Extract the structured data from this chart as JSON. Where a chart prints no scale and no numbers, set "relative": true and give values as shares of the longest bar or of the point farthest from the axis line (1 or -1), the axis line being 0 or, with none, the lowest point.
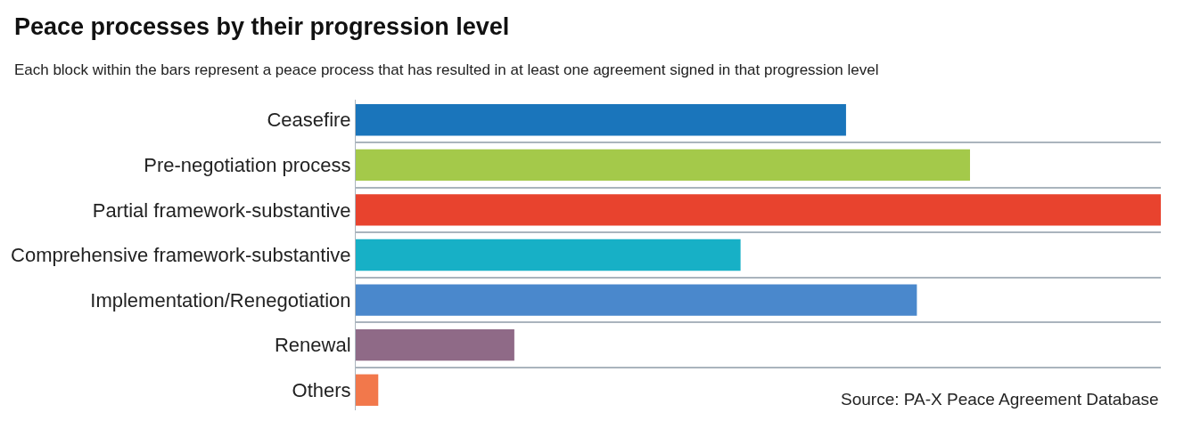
{
  "chart_data": {
    "type": "bar",
    "orientation": "horizontal",
    "relative": true,
    "title": "Peace processes by their progression level",
    "subtitle": "Each block within the bars represent a peace process that has resulted in at least one agreement signed in that progression level",
    "categories": [
      "Ceasefire",
      "Pre-negotiation process",
      "Partial framework-substantive",
      "Comprehensive framework-substantive",
      "Implementation/Renegotiation",
      "Renewal",
      "Others"
    ],
    "values": [
      0.609,
      0.763,
      1,
      0.478,
      0.697,
      0.197,
      0.028
    ],
    "colors": [
      "#1a75bb",
      "#a4c94a",
      "#e8432e",
      "#17b0c6",
      "#4a88cc",
      "#8f6a87",
      "#f2784b"
    ],
    "grid": "y",
    "annotations": [
      "Source: PA-X Peace Agreement Database"
    ]
  }
}
